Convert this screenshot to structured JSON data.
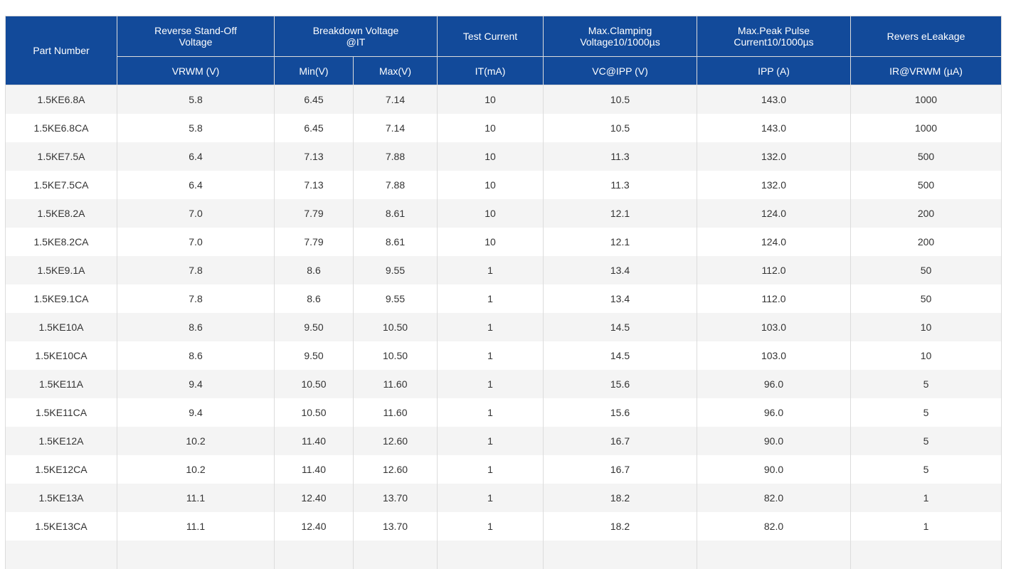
{
  "header": {
    "part_number": "Part Number",
    "reverse_standoff": [
      "Reverse Stand-Off",
      "Voltage"
    ],
    "breakdown": [
      "Breakdown Voltage",
      "@IT"
    ],
    "test_current": "Test Current",
    "clamping": [
      "Max.Clamping",
      "Voltage10/1000µs"
    ],
    "peak_pulse": [
      "Max.Peak Pulse",
      "Current10/1000µs"
    ],
    "leakage": "Revers eLeakage",
    "units": {
      "vrwm": "VRWM (V)",
      "min": "Min(V)",
      "max": "Max(V)",
      "it": "IT(mA)",
      "vc": "VC@IPP (V)",
      "ipp": "IPP (A)",
      "ir": "IR@VRWM (µA)"
    }
  },
  "rows": [
    [
      "1.5KE6.8A",
      "5.8",
      "6.45",
      "7.14",
      "10",
      "10.5",
      "143.0",
      "1000"
    ],
    [
      "1.5KE6.8CA",
      "5.8",
      "6.45",
      "7.14",
      "10",
      "10.5",
      "143.0",
      "1000"
    ],
    [
      "1.5KE7.5A",
      "6.4",
      "7.13",
      "7.88",
      "10",
      "11.3",
      "132.0",
      "500"
    ],
    [
      "1.5KE7.5CA",
      "6.4",
      "7.13",
      "7.88",
      "10",
      "11.3",
      "132.0",
      "500"
    ],
    [
      "1.5KE8.2A",
      "7.0",
      "7.79",
      "8.61",
      "10",
      "12.1",
      "124.0",
      "200"
    ],
    [
      "1.5KE8.2CA",
      "7.0",
      "7.79",
      "8.61",
      "10",
      "12.1",
      "124.0",
      "200"
    ],
    [
      "1.5KE9.1A",
      "7.8",
      "8.6",
      "9.55",
      "1",
      "13.4",
      "112.0",
      "50"
    ],
    [
      "1.5KE9.1CA",
      "7.8",
      "8.6",
      "9.55",
      "1",
      "13.4",
      "112.0",
      "50"
    ],
    [
      "1.5KE10A",
      "8.6",
      "9.50",
      "10.50",
      "1",
      "14.5",
      "103.0",
      "10"
    ],
    [
      "1.5KE10CA",
      "8.6",
      "9.50",
      "10.50",
      "1",
      "14.5",
      "103.0",
      "10"
    ],
    [
      "1.5KE11A",
      "9.4",
      "10.50",
      "11.60",
      "1",
      "15.6",
      "96.0",
      "5"
    ],
    [
      "1.5KE11CA",
      "9.4",
      "10.50",
      "11.60",
      "1",
      "15.6",
      "96.0",
      "5"
    ],
    [
      "1.5KE12A",
      "10.2",
      "11.40",
      "12.60",
      "1",
      "16.7",
      "90.0",
      "5"
    ],
    [
      "1.5KE12CA",
      "10.2",
      "11.40",
      "12.60",
      "1",
      "16.7",
      "90.0",
      "5"
    ],
    [
      "1.5KE13A",
      "11.1",
      "12.40",
      "13.70",
      "1",
      "18.2",
      "82.0",
      "1"
    ],
    [
      "1.5KE13CA",
      "11.1",
      "12.40",
      "13.70",
      "1",
      "18.2",
      "82.0",
      "1"
    ],
    [
      "",
      "",
      "",
      "",
      "",
      "",
      "",
      ""
    ]
  ]
}
